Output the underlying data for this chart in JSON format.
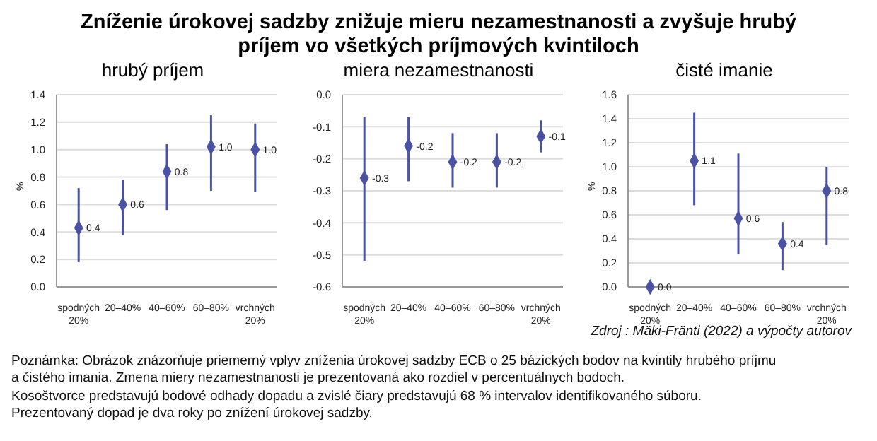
{
  "chart_data": [
    {
      "type": "other",
      "title": "Zníženie úrokovej sadzby znižuje mieru nezamestnanosti a zvyšuje hrubý príjem vo všetkých príjmových kvintiloch",
      "annotations": [
        "Zdroj : Mäki-Fränti (2022) a výpočty autorov",
        "Poznámka: Obrázok znázorňuje priemerný vplyv zníženia úrokovej sadzby ECB o 25 bázických bodov na kvintily hrubého príjmu",
        "a čistého imania. Zmena miery nezamestnanosti je prezentovaná ako rozdiel v percentuálnych bodoch.",
        "Kosoštvorce predstavujú bodové odhady dopadu a zvislé čiary predstavujú 68 % intervalov identifikovaného súboru.",
        "Prezentovaný dopad je dva roky po znížení úrokovej sadzby."
      ]
    },
    {
      "type": "scatter",
      "title": "hrubý príjem",
      "ylabel": "%",
      "categories": [
        "spodných 20%",
        "20–40%",
        "40–60%",
        "60–80%",
        "vrchných 20%"
      ],
      "color": "#4a52a3",
      "marker": "diamond",
      "grid": "y",
      "values": [
        0.43,
        0.6,
        0.84,
        1.02,
        1.0
      ],
      "errors": [
        [
          0.18,
          0.72
        ],
        [
          0.38,
          0.78
        ],
        [
          0.56,
          1.04
        ],
        [
          0.7,
          1.25
        ],
        [
          0.69,
          1.19
        ]
      ],
      "value_labels": [
        "0.4",
        "0.6",
        "0.8",
        "1.0",
        "1.0"
      ],
      "ylim": [
        0,
        1.4
      ],
      "yticks": [
        {
          "value": 0,
          "label": "0.0"
        },
        {
          "value": 0.2,
          "label": "0.2"
        },
        {
          "value": 0.4,
          "label": "0.4"
        },
        {
          "value": 0.6,
          "label": "0.6"
        },
        {
          "value": 0.8,
          "label": "0.8"
        },
        {
          "value": 1,
          "label": "1.0"
        },
        {
          "value": 1.2,
          "label": "1.2"
        },
        {
          "value": 1.4,
          "label": "1.4"
        }
      ]
    },
    {
      "type": "scatter",
      "title": "miera nezamestnanosti",
      "categories": [
        "spodných 20%",
        "20–40%",
        "40–60%",
        "60–80%",
        "vrchných 20%"
      ],
      "color": "#4a52a3",
      "marker": "diamond",
      "grid": "y",
      "values": [
        -0.26,
        -0.16,
        -0.21,
        -0.21,
        -0.13
      ],
      "errors": [
        [
          -0.52,
          -0.07
        ],
        [
          -0.27,
          -0.07
        ],
        [
          -0.29,
          -0.12
        ],
        [
          -0.29,
          -0.12
        ],
        [
          -0.18,
          -0.08
        ]
      ],
      "value_labels": [
        "-0.3",
        "-0.2",
        "-0.2",
        "-0.2",
        "-0.1"
      ],
      "ylim": [
        -0.6,
        0
      ],
      "yticks": [
        {
          "value": -0.6,
          "label": "-0.6"
        },
        {
          "value": -0.5,
          "label": "-0.5"
        },
        {
          "value": -0.4,
          "label": "-0.4"
        },
        {
          "value": -0.3,
          "label": "-0.3"
        },
        {
          "value": -0.2,
          "label": "-0.2"
        },
        {
          "value": -0.1,
          "label": "-0.1"
        },
        {
          "value": 0,
          "label": "0.0"
        }
      ]
    },
    {
      "type": "scatter",
      "title": "čisté imanie",
      "ylabel": "%",
      "categories": [
        "spodných 20%",
        "20–40%",
        "40–60%",
        "60–80%",
        "vrchných 20%"
      ],
      "color": "#4a52a3",
      "marker": "diamond",
      "grid": "y",
      "values": [
        0.0,
        1.05,
        0.57,
        0.36,
        0.8
      ],
      "errors": [
        null,
        [
          0.68,
          1.45
        ],
        [
          0.27,
          1.11
        ],
        [
          0.14,
          0.54
        ],
        [
          0.35,
          1.0
        ]
      ],
      "value_labels": [
        "0.0",
        "1.1",
        "0.6",
        "0.4",
        "0.8"
      ],
      "ylim": [
        0,
        1.6
      ],
      "yticks": [
        {
          "value": 0,
          "label": "0.0"
        },
        {
          "value": 0.2,
          "label": "0.2"
        },
        {
          "value": 0.4,
          "label": "0.4"
        },
        {
          "value": 0.6,
          "label": "0.6"
        },
        {
          "value": 0.8,
          "label": "0.8"
        },
        {
          "value": 1,
          "label": "1.0"
        },
        {
          "value": 1.2,
          "label": "1.2"
        },
        {
          "value": 1.4,
          "label": "1.4"
        },
        {
          "value": 1.6,
          "label": "1.6"
        }
      ]
    }
  ]
}
